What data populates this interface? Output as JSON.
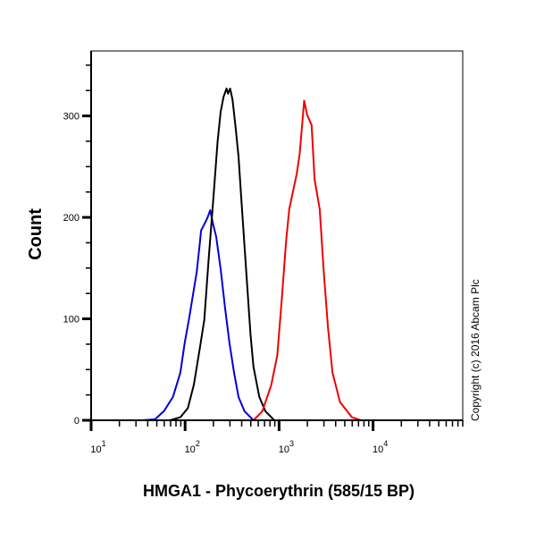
{
  "chart_data": {
    "type": "line",
    "title": "",
    "xlabel": "HMGA1 - Phycoerythrin (585/15 BP)",
    "ylabel": "Count",
    "xscale": "log",
    "xlim": [
      10,
      90000
    ],
    "ylim": [
      0,
      364
    ],
    "x_ticks": [
      {
        "value": 10,
        "base": "10",
        "exp": "1"
      },
      {
        "value": 100,
        "base": "10",
        "exp": "2"
      },
      {
        "value": 1000,
        "base": "10",
        "exp": "3"
      },
      {
        "value": 10000,
        "base": "10",
        "exp": "4"
      }
    ],
    "y_ticks": [
      0,
      100,
      200,
      300
    ],
    "grid": false,
    "legend": "none",
    "annotation": "Copyright (c) 2016 Abcam Plc",
    "series": [
      {
        "color": "#0000dd",
        "points": [
          [
            10,
            0
          ],
          [
            35.6,
            0
          ],
          [
            47.8,
            1
          ],
          [
            59.5,
            9
          ],
          [
            74.2,
            23
          ],
          [
            89,
            47
          ],
          [
            99,
            76
          ],
          [
            111,
            102
          ],
          [
            124,
            129
          ],
          [
            133,
            146
          ],
          [
            143,
            173
          ],
          [
            148,
            187
          ],
          [
            172,
            199
          ],
          [
            185,
            207
          ],
          [
            199,
            193
          ],
          [
            214,
            181
          ],
          [
            239,
            149
          ],
          [
            266,
            111
          ],
          [
            297,
            76
          ],
          [
            332,
            47
          ],
          [
            370,
            23
          ],
          [
            428,
            9
          ],
          [
            533,
            0
          ],
          [
            90000,
            0
          ]
        ]
      },
      {
        "color": "#000000",
        "points": [
          [
            10,
            0
          ],
          [
            68.9,
            0
          ],
          [
            89,
            3
          ],
          [
            107,
            12
          ],
          [
            124,
            35
          ],
          [
            143,
            70
          ],
          [
            160,
            99
          ],
          [
            178,
            158
          ],
          [
            199,
            216
          ],
          [
            222,
            275
          ],
          [
            239,
            304
          ],
          [
            257,
            319
          ],
          [
            276,
            327
          ],
          [
            286,
            322
          ],
          [
            301,
            327
          ],
          [
            320,
            316
          ],
          [
            344,
            289
          ],
          [
            370,
            260
          ],
          [
            398,
            216
          ],
          [
            428,
            173
          ],
          [
            461,
            129
          ],
          [
            496,
            85
          ],
          [
            533,
            53
          ],
          [
            617,
            23
          ],
          [
            714,
            9
          ],
          [
            891,
            0
          ],
          [
            90000,
            0
          ]
        ]
      },
      {
        "color": "#ee0000",
        "points": [
          [
            10,
            0
          ],
          [
            398,
            0
          ],
          [
            533,
            0
          ],
          [
            664,
            9
          ],
          [
            827,
            35
          ],
          [
            957,
            64
          ],
          [
            1069,
            120
          ],
          [
            1192,
            178
          ],
          [
            1282,
            208
          ],
          [
            1380,
            222
          ],
          [
            1541,
            243
          ],
          [
            1656,
            263
          ],
          [
            1849,
            315
          ],
          [
            1988,
            301
          ],
          [
            2218,
            291
          ],
          [
            2387,
            237
          ],
          [
            2704,
            208
          ],
          [
            2972,
            149
          ],
          [
            3319,
            91
          ],
          [
            3700,
            47
          ],
          [
            4446,
            18
          ],
          [
            5952,
            3
          ],
          [
            7413,
            0
          ],
          [
            90000,
            0
          ]
        ]
      }
    ]
  }
}
